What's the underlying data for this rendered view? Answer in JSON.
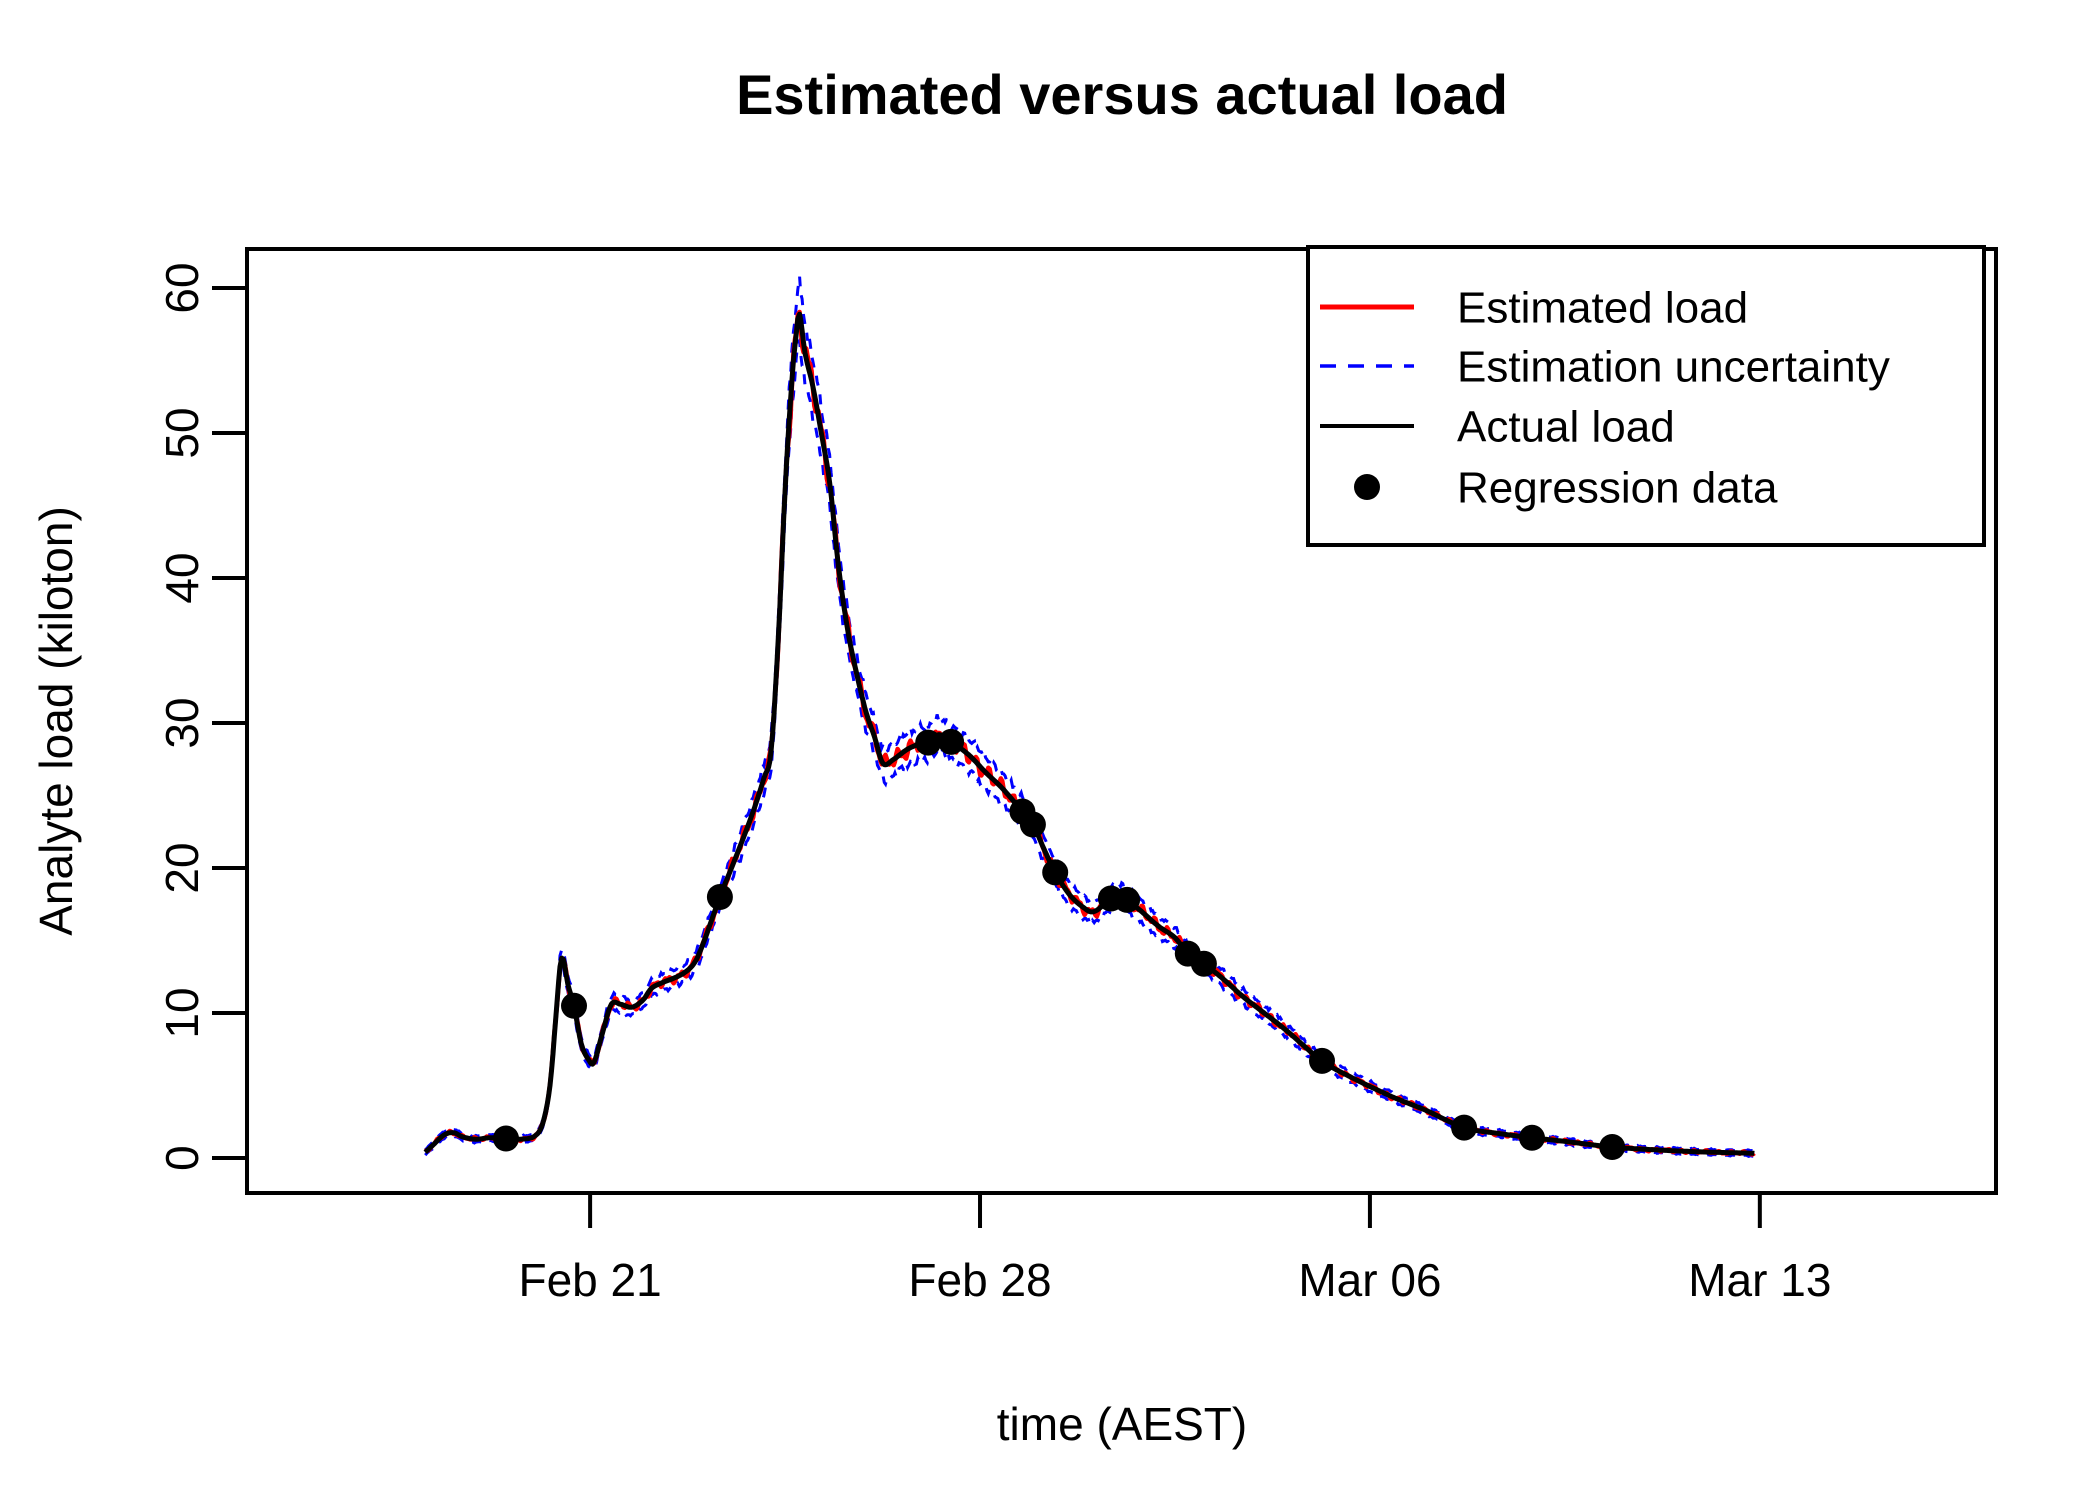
{
  "chart_data": {
    "type": "line",
    "title": "Estimated versus actual load",
    "xlabel": "time (AEST)",
    "ylabel": "Analyte load (kiloton)",
    "grid": false,
    "legend_position": "top-right",
    "axes": {
      "x_range_days": [
        -6.16,
        25.24
      ],
      "y_range": [
        -2.41,
        62.69
      ],
      "x_ticks": [
        {
          "label": "Feb 21",
          "day": 0
        },
        {
          "label": "Feb 28",
          "day": 7
        },
        {
          "label": "Mar 06",
          "day": 14
        },
        {
          "label": "Mar 13",
          "day": 21
        }
      ],
      "y_ticks": [
        {
          "label": "0",
          "value": 0
        },
        {
          "label": "10",
          "value": 10
        },
        {
          "label": "20",
          "value": 20
        },
        {
          "label": "30",
          "value": 30
        },
        {
          "label": "40",
          "value": 40
        },
        {
          "label": "50",
          "value": 50
        },
        {
          "label": "60",
          "value": 60
        }
      ]
    },
    "series": [
      {
        "name": "Estimated load",
        "color": "#ff0000",
        "style": "solid",
        "width": 4.5
      },
      {
        "name": "Estimation uncertainty",
        "color": "#0000ff",
        "style": "dashed",
        "width": 3
      },
      {
        "name": "Actual load",
        "color": "#000000",
        "style": "solid",
        "width": 5
      },
      {
        "name": "Regression data",
        "color": "#000000",
        "style": "points",
        "radius": 13
      }
    ],
    "actual_load_day_value": [
      [
        -2.96,
        0.4
      ],
      [
        -2.82,
        0.9
      ],
      [
        -2.62,
        1.6
      ],
      [
        -2.45,
        1.75
      ],
      [
        -2.28,
        1.45
      ],
      [
        -2.05,
        1.3
      ],
      [
        -1.8,
        1.4
      ],
      [
        -1.51,
        1.35
      ],
      [
        -1.25,
        1.3
      ],
      [
        -1.0,
        1.5
      ],
      [
        -0.85,
        2.4
      ],
      [
        -0.72,
        5.0
      ],
      [
        -0.62,
        9.5
      ],
      [
        -0.54,
        13.2
      ],
      [
        -0.48,
        13.7
      ],
      [
        -0.4,
        12.0
      ],
      [
        -0.29,
        10.5
      ],
      [
        -0.16,
        7.9
      ],
      [
        -0.03,
        6.8
      ],
      [
        0.07,
        6.6
      ],
      [
        0.22,
        8.6
      ],
      [
        0.38,
        10.6
      ],
      [
        0.55,
        10.6
      ],
      [
        0.75,
        10.4
      ],
      [
        0.95,
        10.9
      ],
      [
        1.1,
        11.7
      ],
      [
        1.3,
        12.1
      ],
      [
        1.5,
        12.4
      ],
      [
        1.7,
        12.8
      ],
      [
        1.88,
        13.5
      ],
      [
        2.05,
        15.0
      ],
      [
        2.33,
        18.0
      ],
      [
        2.6,
        20.6
      ],
      [
        2.9,
        23.6
      ],
      [
        3.12,
        26.2
      ],
      [
        3.25,
        28.1
      ],
      [
        3.38,
        36.0
      ],
      [
        3.5,
        46.0
      ],
      [
        3.62,
        53.5
      ],
      [
        3.7,
        56.8
      ],
      [
        3.76,
        58.2
      ],
      [
        3.86,
        55.5
      ],
      [
        4.0,
        53.2
      ],
      [
        4.15,
        50.0
      ],
      [
        4.3,
        46.6
      ],
      [
        4.46,
        40.8
      ],
      [
        4.62,
        36.5
      ],
      [
        4.78,
        33.5
      ],
      [
        4.95,
        30.8
      ],
      [
        5.11,
        29.0
      ],
      [
        5.26,
        27.2
      ],
      [
        5.45,
        27.5
      ],
      [
        5.7,
        28.2
      ],
      [
        5.95,
        28.6
      ],
      [
        6.1,
        28.7
      ],
      [
        6.26,
        29.2
      ],
      [
        6.48,
        28.7
      ],
      [
        6.8,
        27.8
      ],
      [
        7.1,
        26.6
      ],
      [
        7.4,
        25.5
      ],
      [
        7.76,
        23.9
      ],
      [
        7.95,
        23.0
      ],
      [
        8.15,
        21.3
      ],
      [
        8.35,
        19.7
      ],
      [
        8.6,
        18.2
      ],
      [
        8.85,
        17.3
      ],
      [
        9.05,
        17.0
      ],
      [
        9.35,
        17.9
      ],
      [
        9.5,
        18.1
      ],
      [
        9.64,
        17.8
      ],
      [
        9.9,
        17.0
      ],
      [
        10.2,
        16.0
      ],
      [
        10.5,
        15.2
      ],
      [
        10.73,
        14.1
      ],
      [
        11.02,
        13.4
      ],
      [
        11.35,
        12.4
      ],
      [
        11.7,
        11.2
      ],
      [
        12.0,
        10.3
      ],
      [
        12.5,
        8.8
      ],
      [
        13.14,
        6.7
      ],
      [
        13.7,
        5.5
      ],
      [
        14.3,
        4.4
      ],
      [
        14.54,
        4.0
      ],
      [
        15.0,
        3.3
      ],
      [
        15.69,
        2.1
      ],
      [
        16.3,
        1.7
      ],
      [
        16.91,
        1.4
      ],
      [
        17.5,
        1.15
      ],
      [
        18.35,
        0.76
      ],
      [
        19.2,
        0.55
      ],
      [
        20.0,
        0.42
      ],
      [
        20.9,
        0.33
      ]
    ],
    "regression_points_day_value": [
      [
        -1.51,
        1.35
      ],
      [
        -0.29,
        10.5
      ],
      [
        2.33,
        18.0
      ],
      [
        6.07,
        28.65
      ],
      [
        6.48,
        28.7
      ],
      [
        7.76,
        23.9
      ],
      [
        7.95,
        23.0
      ],
      [
        8.35,
        19.7
      ],
      [
        9.35,
        17.9
      ],
      [
        9.64,
        17.8
      ],
      [
        10.73,
        14.1
      ],
      [
        11.02,
        13.4
      ],
      [
        13.14,
        6.7
      ],
      [
        15.69,
        2.1
      ],
      [
        16.91,
        1.4
      ],
      [
        18.35,
        0.76
      ]
    ],
    "uncertainty_band": {
      "base": 0.25,
      "per_unit": 0.048,
      "center_weight": 0.55,
      "noise_weight": 0.32,
      "estimated_noise_weight": 0.45
    }
  },
  "legend": {
    "items": [
      {
        "label": "Estimated load"
      },
      {
        "label": "Estimation uncertainty"
      },
      {
        "label": "Actual load"
      },
      {
        "label": "Regression data"
      }
    ]
  }
}
